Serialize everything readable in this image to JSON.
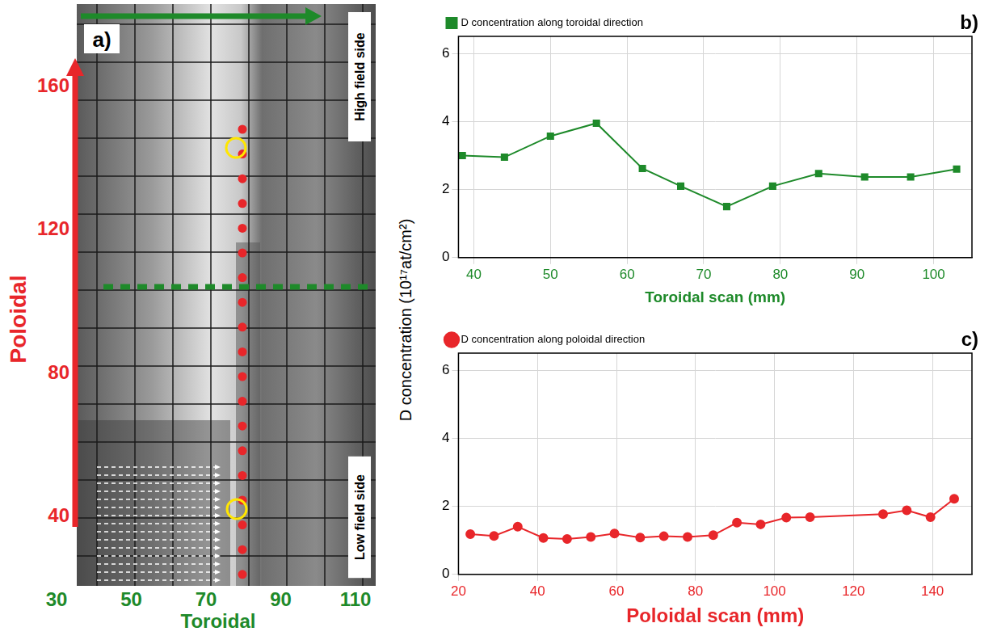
{
  "photo_panel": {
    "label": "a)",
    "y_title": "Poloidal",
    "x_title": "Toroidal",
    "yticks": [
      40,
      80,
      120,
      160
    ],
    "xticks": [
      30,
      50,
      70,
      90,
      110
    ],
    "top_text": "High field side",
    "bottom_text": "Low field side"
  },
  "y_label": "D concentration (10¹⁷at/cm²)",
  "chart_data": [
    {
      "type": "line",
      "panel": "b)",
      "x_label": "Toroidal scan (mm)",
      "x": [
        38.5,
        44,
        50,
        56,
        62,
        67,
        73,
        79,
        85,
        91,
        97,
        103
      ],
      "series": [
        {
          "name": "D concentration along toroidal direction",
          "color": "#1e8a2a",
          "marker": "square",
          "values": [
            3.0,
            2.95,
            3.57,
            3.95,
            2.62,
            2.1,
            1.5,
            2.1,
            2.47,
            2.37,
            2.37,
            2.6
          ]
        }
      ],
      "xlim": [
        38,
        105
      ],
      "xticks": [
        40,
        50,
        60,
        70,
        80,
        90,
        100
      ],
      "ylim": [
        0,
        6.5
      ],
      "yticks": [
        0,
        2,
        4,
        6
      ],
      "grid": true,
      "legend": "upper left"
    },
    {
      "type": "line",
      "panel": "c)",
      "x_label": "Poloidal scan (mm)",
      "x": [
        23,
        29,
        35,
        41.5,
        47.5,
        53.5,
        59.5,
        66,
        72,
        78,
        84.5,
        90.5,
        96.5,
        103,
        109,
        127.5,
        133.5,
        139.5,
        145.5
      ],
      "series": [
        {
          "name": "D concentration along poloidal direction",
          "color": "#e8262a",
          "marker": "circle",
          "values": [
            1.18,
            1.13,
            1.4,
            1.07,
            1.04,
            1.1,
            1.2,
            1.08,
            1.12,
            1.1,
            1.15,
            1.52,
            1.47,
            1.67,
            1.68,
            1.77,
            1.88,
            1.68,
            2.22
          ]
        }
      ],
      "xlim": [
        20,
        150
      ],
      "xticks": [
        20,
        40,
        60,
        80,
        100,
        120,
        140
      ],
      "ylim": [
        0,
        6.5
      ],
      "yticks": [
        0,
        2,
        4,
        6
      ],
      "grid": true,
      "legend": "upper left"
    }
  ]
}
